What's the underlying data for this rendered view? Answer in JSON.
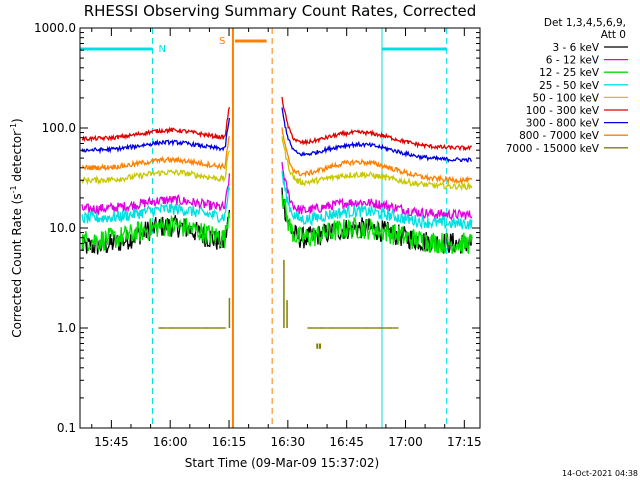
{
  "chart_data": {
    "type": "line",
    "title": "RHESSI Observing Summary Count Rates, Corrected",
    "xlabel": "Start Time (09-Mar-09 15:37:02)",
    "ylabel_main": "Corrected Count Rate (s",
    "ylabel_sup1": "-1",
    "ylabel_mid": " detector",
    "ylabel_sup2": "-1",
    "ylabel_end": ")",
    "y_scale": "log",
    "ylim": [
      0.1,
      1000
    ],
    "xlim_min": [
      37,
      120
    ],
    "x_ticks": [
      "15:45",
      "16:00",
      "16:15",
      "16:30",
      "16:45",
      "17:00",
      "17:15"
    ],
    "x_tick_min": [
      45,
      60,
      75,
      90,
      105,
      120,
      135
    ],
    "y_ticks": [
      "0.1",
      "1.0",
      "10.0",
      "100.0",
      "1000.0"
    ],
    "y_tick_vals": [
      0.1,
      1,
      10,
      100,
      1000
    ],
    "legend_header": [
      "Det 1,3,4,5,6,9,",
      "Att 0"
    ],
    "legend_position": "right",
    "series": [
      {
        "name": "3 - 6 keV",
        "color": "#000000",
        "day": [
          6.5,
          10.5,
          7.0
        ],
        "night_start": 7.5,
        "night_end": 7.0
      },
      {
        "name": "6 - 12 keV",
        "color": "#e000e0",
        "day": [
          15.5,
          19.0,
          13.5
        ],
        "night_start": 15.5,
        "night_end": 13.5
      },
      {
        "name": "12 - 25 keV",
        "color": "#00e000",
        "day": [
          7.5,
          10.5,
          7.0
        ],
        "night_start": 7.5,
        "night_end": 7.0
      },
      {
        "name": "25 - 50 keV",
        "color": "#00e0e0",
        "day": [
          12.5,
          15.5,
          11.0
        ],
        "night_start": 12.5,
        "night_end": 11.0
      },
      {
        "name": "50 - 100 keV",
        "color": "#c8c800",
        "day": [
          30.0,
          36.0,
          26.0
        ],
        "night_start": 30.0,
        "night_end": 26.0
      },
      {
        "name": "100 - 300 keV",
        "color": "#e00000",
        "day": [
          78.0,
          95.0,
          63.0
        ],
        "night_start": 78.0,
        "night_end": 63.0
      },
      {
        "name": "300 - 800 keV",
        "color": "#0000e0",
        "day": [
          60.0,
          72.0,
          48.0
        ],
        "night_start": 60.0,
        "night_end": 48.0
      },
      {
        "name": "800 - 7000 keV",
        "color": "#ff8000",
        "day": [
          40.0,
          48.0,
          30.0
        ],
        "night_start": 40.0,
        "night_end": 30.0
      },
      {
        "name": "7000 - 15000 keV",
        "color": "#808000",
        "day": [
          1.0,
          1.0,
          1.0
        ],
        "night_start": 1.0,
        "night_end": 1.0
      }
    ],
    "annotations": {
      "night_label": "N",
      "saa_label": "S",
      "night_intervals_min": [
        [
          37,
          55.5
        ],
        [
          114,
          130.5
        ]
      ],
      "saa_interval_min": [
        76,
        80
      ],
      "saa_end_dashed_min": 86,
      "timestamp": "14-Oct-2021 04:38"
    }
  }
}
